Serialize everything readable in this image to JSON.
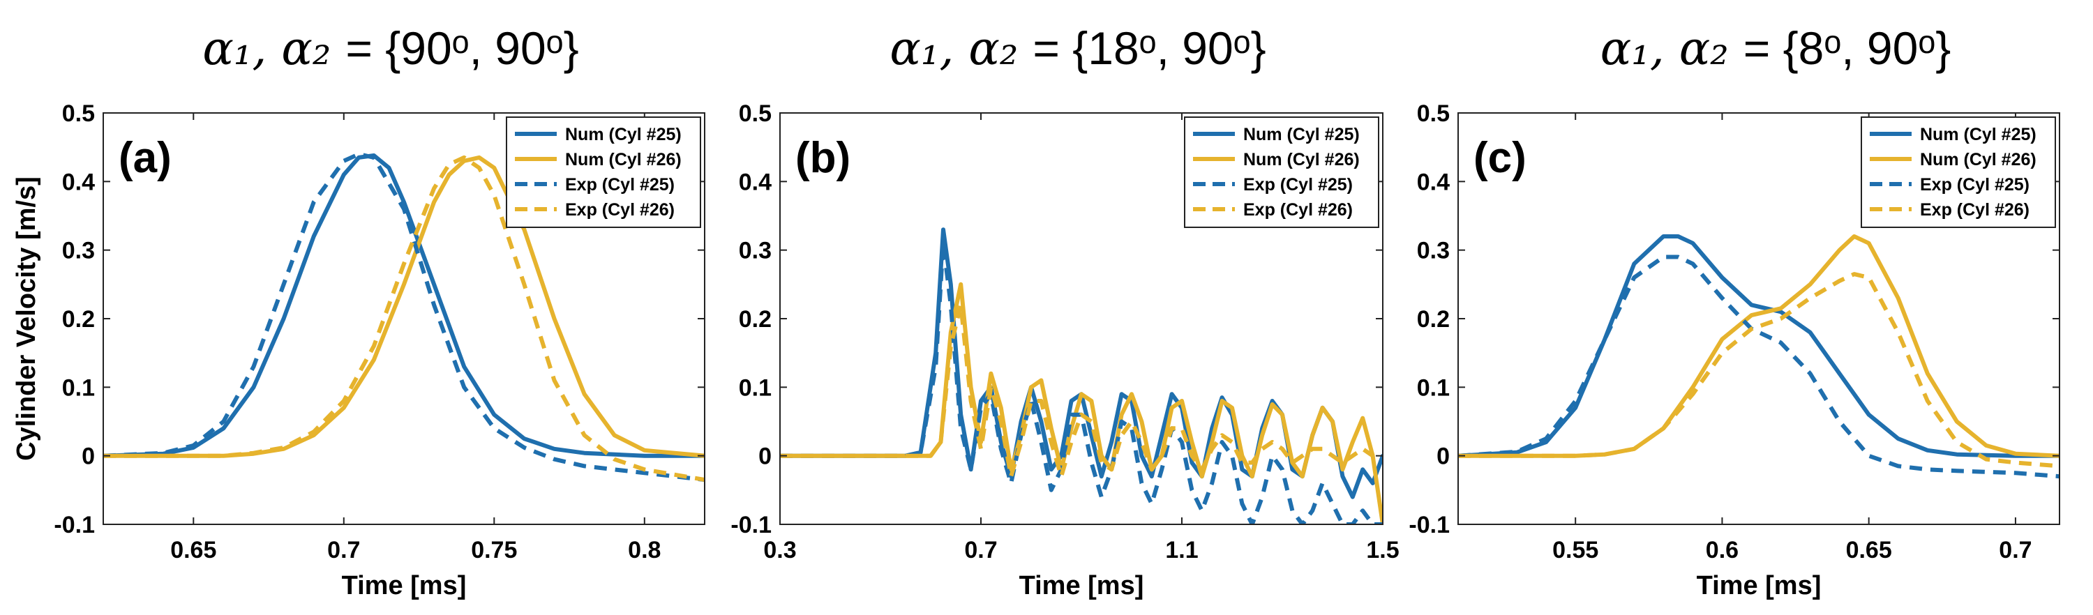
{
  "colors": {
    "cyl25": "#1f6fae",
    "cyl26": "#e6b32d"
  },
  "ylabel": "Cylinder Velocity [m/s]",
  "chart_data": [
    {
      "type": "line",
      "title_math": "α₁, α₂",
      "title_text": "= {90ᵒ, 90ᵒ}",
      "panel_label": "(a)",
      "xlabel": "Time [ms]",
      "ylabel": "Cylinder Velocity [m/s]",
      "xlim": [
        0.62,
        0.82
      ],
      "ylim": [
        -0.1,
        0.5
      ],
      "xticks": [
        0.65,
        0.7,
        0.75,
        0.8
      ],
      "xtick_labels": [
        "0.65",
        "0.7",
        "0.75",
        "0.8"
      ],
      "yticks": [
        -0.1,
        0,
        0.1,
        0.2,
        0.3,
        0.4,
        0.5
      ],
      "ytick_labels": [
        "-0.1",
        "0",
        "0.1",
        "0.2",
        "0.3",
        "0.4",
        "0.5"
      ],
      "legend_position": "top-right",
      "series": [
        {
          "name": "Num (Cyl #25)",
          "style": "solid",
          "color_key": "cyl25",
          "x": [
            0.62,
            0.64,
            0.65,
            0.66,
            0.67,
            0.68,
            0.69,
            0.7,
            0.705,
            0.71,
            0.715,
            0.72,
            0.73,
            0.74,
            0.75,
            0.76,
            0.77,
            0.78,
            0.8,
            0.82
          ],
          "y": [
            0.0,
            0.003,
            0.012,
            0.04,
            0.1,
            0.2,
            0.32,
            0.41,
            0.435,
            0.438,
            0.42,
            0.37,
            0.25,
            0.13,
            0.06,
            0.025,
            0.01,
            0.004,
            0.0,
            0.0
          ]
        },
        {
          "name": "Num (Cyl #26)",
          "style": "solid",
          "color_key": "cyl26",
          "x": [
            0.62,
            0.66,
            0.67,
            0.68,
            0.69,
            0.7,
            0.71,
            0.72,
            0.73,
            0.735,
            0.74,
            0.745,
            0.75,
            0.76,
            0.77,
            0.78,
            0.79,
            0.8,
            0.82
          ],
          "y": [
            0.0,
            0.0,
            0.003,
            0.01,
            0.03,
            0.07,
            0.14,
            0.25,
            0.37,
            0.41,
            0.43,
            0.435,
            0.42,
            0.33,
            0.2,
            0.09,
            0.03,
            0.008,
            0.0
          ]
        },
        {
          "name": "Exp (Cyl #25)",
          "style": "dashed",
          "color_key": "cyl25",
          "x": [
            0.62,
            0.64,
            0.65,
            0.66,
            0.67,
            0.68,
            0.69,
            0.7,
            0.705,
            0.71,
            0.72,
            0.73,
            0.74,
            0.75,
            0.76,
            0.77,
            0.78,
            0.8,
            0.82
          ],
          "y": [
            0.0,
            0.004,
            0.015,
            0.05,
            0.13,
            0.25,
            0.37,
            0.43,
            0.44,
            0.435,
            0.36,
            0.22,
            0.1,
            0.04,
            0.012,
            -0.005,
            -0.015,
            -0.025,
            -0.035
          ]
        },
        {
          "name": "Exp (Cyl #26)",
          "style": "dashed",
          "color_key": "cyl26",
          "x": [
            0.62,
            0.66,
            0.67,
            0.68,
            0.69,
            0.7,
            0.71,
            0.72,
            0.73,
            0.735,
            0.74,
            0.745,
            0.75,
            0.76,
            0.77,
            0.78,
            0.79,
            0.8,
            0.82
          ],
          "y": [
            0.0,
            0.0,
            0.004,
            0.012,
            0.035,
            0.08,
            0.16,
            0.28,
            0.39,
            0.425,
            0.435,
            0.42,
            0.38,
            0.25,
            0.11,
            0.03,
            -0.005,
            -0.02,
            -0.035
          ]
        }
      ]
    },
    {
      "type": "line",
      "title_math": "α₁, α₂",
      "title_text": "= {18ᵒ, 90ᵒ}",
      "panel_label": "(b)",
      "xlabel": "Time [ms]",
      "ylabel": "",
      "xlim": [
        0.3,
        1.5
      ],
      "ylim": [
        -0.1,
        0.5
      ],
      "xticks": [
        0.3,
        0.7,
        1.1,
        1.5
      ],
      "xtick_labels": [
        "0.3",
        "0.7",
        "1.1",
        "1.5"
      ],
      "yticks": [
        -0.1,
        0,
        0.1,
        0.2,
        0.3,
        0.4,
        0.5
      ],
      "ytick_labels": [
        "-0.1",
        "0",
        "0.1",
        "0.2",
        "0.3",
        "0.4",
        "0.5"
      ],
      "legend_position": "top-right",
      "series": [
        {
          "name": "Num (Cyl #25)",
          "style": "solid",
          "color_key": "cyl25",
          "x": [
            0.3,
            0.55,
            0.58,
            0.61,
            0.625,
            0.64,
            0.66,
            0.68,
            0.7,
            0.72,
            0.74,
            0.76,
            0.78,
            0.8,
            0.82,
            0.84,
            0.86,
            0.88,
            0.9,
            0.92,
            0.94,
            0.96,
            0.98,
            1.0,
            1.02,
            1.04,
            1.06,
            1.08,
            1.1,
            1.12,
            1.14,
            1.16,
            1.18,
            1.2,
            1.22,
            1.24,
            1.26,
            1.28,
            1.3,
            1.32,
            1.34,
            1.36,
            1.38,
            1.4,
            1.42,
            1.44,
            1.46,
            1.48,
            1.5
          ],
          "y": [
            0.0,
            0.0,
            0.005,
            0.15,
            0.33,
            0.25,
            0.06,
            -0.02,
            0.08,
            0.1,
            0.02,
            -0.03,
            0.05,
            0.1,
            0.05,
            -0.02,
            0.0,
            0.08,
            0.09,
            0.03,
            -0.03,
            0.02,
            0.09,
            0.08,
            0.0,
            -0.03,
            0.03,
            0.09,
            0.07,
            -0.01,
            -0.03,
            0.04,
            0.085,
            0.06,
            -0.02,
            -0.03,
            0.04,
            0.08,
            0.06,
            -0.02,
            -0.03,
            0.03,
            0.07,
            0.05,
            -0.03,
            -0.06,
            -0.02,
            -0.04,
            0.0
          ]
        },
        {
          "name": "Num (Cyl #26)",
          "style": "solid",
          "color_key": "cyl26",
          "x": [
            0.3,
            0.6,
            0.62,
            0.64,
            0.66,
            0.68,
            0.7,
            0.72,
            0.74,
            0.76,
            0.78,
            0.8,
            0.82,
            0.84,
            0.86,
            0.88,
            0.9,
            0.92,
            0.94,
            0.96,
            0.98,
            1.0,
            1.02,
            1.04,
            1.06,
            1.08,
            1.1,
            1.12,
            1.14,
            1.16,
            1.18,
            1.2,
            1.22,
            1.24,
            1.26,
            1.28,
            1.3,
            1.32,
            1.34,
            1.36,
            1.38,
            1.4,
            1.42,
            1.44,
            1.46,
            1.48,
            1.5
          ],
          "y": [
            0.0,
            0.0,
            0.02,
            0.18,
            0.25,
            0.1,
            0.02,
            0.12,
            0.07,
            -0.02,
            0.03,
            0.1,
            0.11,
            0.04,
            -0.02,
            0.04,
            0.09,
            0.08,
            0.0,
            -0.02,
            0.06,
            0.09,
            0.05,
            -0.02,
            0.0,
            0.07,
            0.08,
            0.02,
            -0.03,
            0.02,
            0.08,
            0.07,
            0.0,
            -0.03,
            0.03,
            0.075,
            0.06,
            -0.01,
            -0.03,
            0.03,
            0.07,
            0.05,
            -0.02,
            0.02,
            0.055,
            0.0,
            -0.1
          ]
        },
        {
          "name": "Exp (Cyl #25)",
          "style": "dashed",
          "color_key": "cyl25",
          "x": [
            0.3,
            0.55,
            0.58,
            0.61,
            0.625,
            0.64,
            0.66,
            0.68,
            0.7,
            0.72,
            0.74,
            0.76,
            0.78,
            0.8,
            0.82,
            0.84,
            0.86,
            0.88,
            0.9,
            0.92,
            0.94,
            0.96,
            0.98,
            1.0,
            1.02,
            1.04,
            1.06,
            1.08,
            1.1,
            1.12,
            1.14,
            1.16,
            1.18,
            1.2,
            1.22,
            1.24,
            1.26,
            1.28,
            1.3,
            1.32,
            1.34,
            1.36,
            1.38,
            1.4,
            1.42,
            1.44,
            1.46,
            1.48,
            1.5
          ],
          "y": [
            0.0,
            0.0,
            0.005,
            0.13,
            0.31,
            0.22,
            0.04,
            -0.02,
            0.07,
            0.09,
            0.01,
            -0.04,
            0.03,
            0.08,
            0.02,
            -0.05,
            -0.02,
            0.06,
            0.06,
            -0.01,
            -0.06,
            -0.02,
            0.05,
            0.04,
            -0.04,
            -0.07,
            -0.02,
            0.04,
            0.02,
            -0.05,
            -0.08,
            -0.04,
            0.02,
            0.0,
            -0.07,
            -0.1,
            -0.06,
            0.0,
            -0.02,
            -0.08,
            -0.1,
            -0.08,
            -0.04,
            -0.07,
            -0.1,
            -0.1,
            -0.08,
            -0.1,
            -0.1
          ]
        },
        {
          "name": "Exp (Cyl #26)",
          "style": "dashed",
          "color_key": "cyl26",
          "x": [
            0.3,
            0.6,
            0.62,
            0.64,
            0.66,
            0.68,
            0.7,
            0.72,
            0.74,
            0.76,
            0.78,
            0.8,
            0.82,
            0.84,
            0.86,
            0.88,
            0.9,
            0.92,
            0.94,
            0.96,
            0.98,
            1.0,
            1.02,
            1.04,
            1.06,
            1.08,
            1.1,
            1.12,
            1.14,
            1.16,
            1.18,
            1.2,
            1.22,
            1.24,
            1.26,
            1.28,
            1.3,
            1.32,
            1.34,
            1.36,
            1.38,
            1.4,
            1.42,
            1.44,
            1.46,
            1.48,
            1.5
          ],
          "y": [
            0.0,
            0.0,
            0.02,
            0.16,
            0.22,
            0.08,
            0.01,
            0.1,
            0.05,
            -0.03,
            0.02,
            0.08,
            0.08,
            0.02,
            -0.03,
            0.02,
            0.06,
            0.05,
            -0.01,
            -0.02,
            0.03,
            0.05,
            0.02,
            -0.02,
            0.0,
            0.04,
            0.04,
            0.0,
            -0.02,
            0.01,
            0.03,
            0.02,
            -0.01,
            -0.01,
            0.01,
            0.02,
            0.01,
            -0.01,
            0.0,
            0.01,
            0.01,
            0.0,
            -0.01,
            0.0,
            0.01,
            0.0,
            0.0
          ]
        }
      ]
    },
    {
      "type": "line",
      "title_math": "α₁, α₂",
      "title_text": "= {8ᵒ, 90ᵒ}",
      "panel_label": "(c)",
      "xlabel": "Time [ms]",
      "ylabel": "",
      "xlim": [
        0.51,
        0.715
      ],
      "ylim": [
        -0.1,
        0.5
      ],
      "xticks": [
        0.55,
        0.6,
        0.65,
        0.7
      ],
      "xtick_labels": [
        "0.55",
        "0.6",
        "0.65",
        "0.7"
      ],
      "yticks": [
        -0.1,
        0,
        0.1,
        0.2,
        0.3,
        0.4,
        0.5
      ],
      "ytick_labels": [
        "-0.1",
        "0",
        "0.1",
        "0.2",
        "0.3",
        "0.4",
        "0.5"
      ],
      "legend_position": "top-right",
      "series": [
        {
          "name": "Num (Cyl #25)",
          "style": "solid",
          "color_key": "cyl25",
          "x": [
            0.51,
            0.53,
            0.54,
            0.55,
            0.56,
            0.57,
            0.58,
            0.585,
            0.59,
            0.6,
            0.61,
            0.62,
            0.63,
            0.64,
            0.65,
            0.66,
            0.67,
            0.68,
            0.7,
            0.715
          ],
          "y": [
            0.0,
            0.005,
            0.02,
            0.07,
            0.17,
            0.28,
            0.32,
            0.32,
            0.31,
            0.26,
            0.22,
            0.21,
            0.18,
            0.12,
            0.06,
            0.025,
            0.008,
            0.002,
            0.0,
            0.0
          ]
        },
        {
          "name": "Num (Cyl #26)",
          "style": "solid",
          "color_key": "cyl26",
          "x": [
            0.51,
            0.55,
            0.56,
            0.57,
            0.58,
            0.59,
            0.6,
            0.61,
            0.62,
            0.63,
            0.64,
            0.645,
            0.65,
            0.66,
            0.67,
            0.68,
            0.69,
            0.7,
            0.715
          ],
          "y": [
            0.0,
            0.0,
            0.002,
            0.01,
            0.04,
            0.1,
            0.17,
            0.205,
            0.215,
            0.25,
            0.3,
            0.32,
            0.31,
            0.23,
            0.12,
            0.05,
            0.015,
            0.003,
            0.0
          ]
        },
        {
          "name": "Exp (Cyl #25)",
          "style": "dashed",
          "color_key": "cyl25",
          "x": [
            0.51,
            0.53,
            0.54,
            0.55,
            0.56,
            0.57,
            0.58,
            0.585,
            0.59,
            0.6,
            0.61,
            0.62,
            0.63,
            0.64,
            0.65,
            0.66,
            0.67,
            0.68,
            0.7,
            0.715
          ],
          "y": [
            0.0,
            0.006,
            0.025,
            0.08,
            0.17,
            0.26,
            0.29,
            0.29,
            0.28,
            0.23,
            0.185,
            0.165,
            0.12,
            0.05,
            0.0,
            -0.015,
            -0.02,
            -0.022,
            -0.025,
            -0.03
          ]
        },
        {
          "name": "Exp (Cyl #26)",
          "style": "dashed",
          "color_key": "cyl26",
          "x": [
            0.51,
            0.55,
            0.56,
            0.57,
            0.58,
            0.59,
            0.6,
            0.61,
            0.62,
            0.63,
            0.64,
            0.645,
            0.65,
            0.66,
            0.67,
            0.68,
            0.69,
            0.7,
            0.715
          ],
          "y": [
            0.0,
            0.0,
            0.002,
            0.01,
            0.04,
            0.09,
            0.15,
            0.185,
            0.2,
            0.23,
            0.255,
            0.265,
            0.26,
            0.18,
            0.08,
            0.02,
            -0.005,
            -0.01,
            -0.015
          ]
        }
      ]
    }
  ]
}
